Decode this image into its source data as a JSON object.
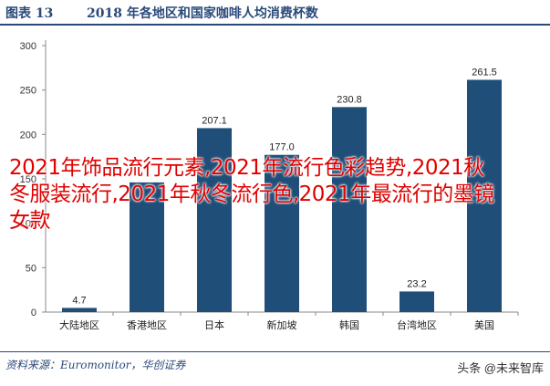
{
  "header": {
    "label": "图表 13",
    "title": "2018 年各地区和国家咖啡人均消费杯数"
  },
  "overlay_text": "2021年饰品流行元素,2021年流行色彩趋势,2021秋冬服装流行,2021年秋冬流行色,2021年最流行的墨镜女款",
  "source": "资料来源：Euromonitor，华创证券",
  "watermark": "头条 @未来智库",
  "colors": {
    "bar": "#1f4e79",
    "axis": "#888888",
    "accent": "#2a4a7a",
    "overlay": "#e00000"
  },
  "chart_data": {
    "type": "bar",
    "title": "",
    "xlabel": "",
    "ylabel": "",
    "categories": [
      "大陆地区",
      "香港地区",
      "日本",
      "新加坡",
      "韩国",
      "台湾地区",
      "美国"
    ],
    "values": [
      4.7,
      146,
      207.1,
      177.0,
      230.8,
      23.2,
      261.5
    ],
    "data_labels": [
      "4.7",
      "",
      "207.1",
      "177.0",
      "230.8",
      "23.2",
      "261.5"
    ],
    "ylim": [
      0,
      300
    ],
    "yticks": [
      0,
      50,
      100,
      150,
      200,
      250,
      300
    ],
    "grid": false,
    "legend": "none"
  }
}
